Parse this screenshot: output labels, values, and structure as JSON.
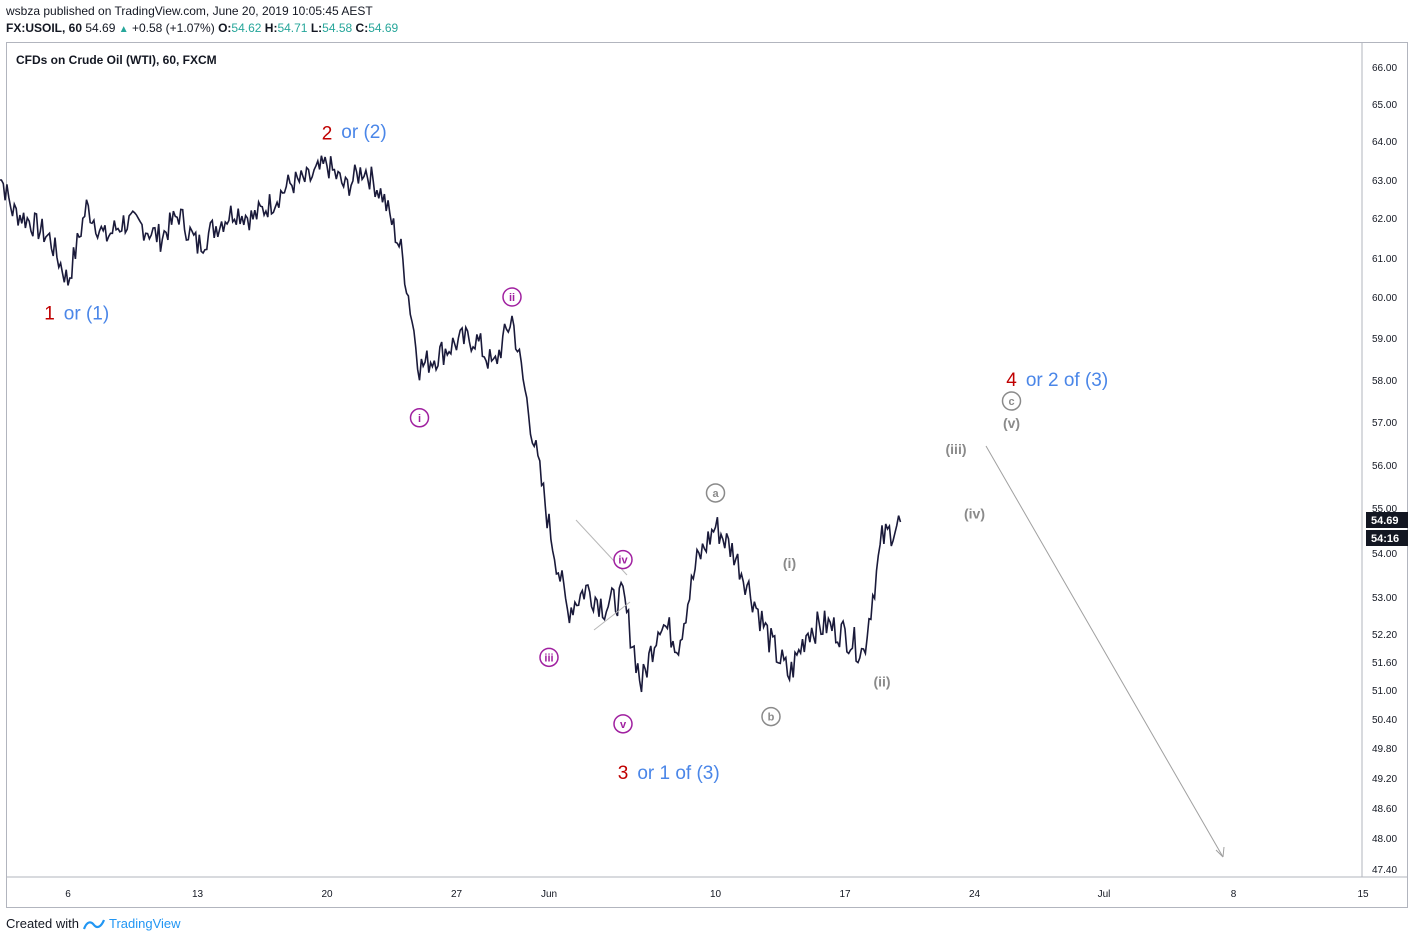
{
  "header": {
    "publisher": "wsbza published on TradingView.com, June 20, 2019 10:05:45 AEST",
    "symbol": "FX:USOIL, 60",
    "last": "54.69",
    "change": "+0.58 (+1.07%)",
    "open_label": "O:",
    "open": "54.62",
    "high_label": "H:",
    "high": "54.71",
    "low_label": "L:",
    "low": "54.58",
    "close_label": "C:",
    "close": "54.69"
  },
  "chart_title": "CFDs on Crude Oil (WTI), 60, FXCM",
  "footer": {
    "created_with": "Created with",
    "brand": "TradingView"
  },
  "colors": {
    "candles": "#1a1a3a",
    "red_label": "#c00000",
    "blue_label": "#4a86e8",
    "purple_label": "#a020a0",
    "gray_label": "#8a8a8a",
    "price_tag": "#131722"
  },
  "chart_data": {
    "type": "line",
    "title": "CFDs on Crude Oil (WTI), 60, FXCM",
    "x_ticks": [
      "6",
      "13",
      "20",
      "27",
      "Jun",
      "10",
      "17",
      "24",
      "Jul",
      "8",
      "15"
    ],
    "y_ticks": [
      "66.00",
      "65.00",
      "64.00",
      "63.00",
      "62.00",
      "61.00",
      "60.00",
      "59.00",
      "58.00",
      "57.00",
      "56.00",
      "55.00",
      "54.00",
      "53.00",
      "52.20",
      "51.60",
      "51.00",
      "50.40",
      "49.80",
      "49.20",
      "48.60",
      "48.00",
      "47.40"
    ],
    "price_tags": [
      "54.69",
      "54:16"
    ],
    "series": [
      {
        "x": [
          "May 2",
          "May 3",
          "May 4",
          "May 5",
          "May 6",
          "May 7",
          "May 8",
          "May 9",
          "May 10",
          "May 11",
          "May 12",
          "May 13",
          "May 14",
          "May 15",
          "May 16",
          "May 17",
          "May 18",
          "May 19",
          "May 20",
          "May 21",
          "May 22",
          "May 23",
          "May 24",
          "May 25",
          "May 26",
          "May 27",
          "May 28",
          "May 29",
          "May 30",
          "May 31",
          "Jun 1",
          "Jun 2",
          "Jun 3",
          "Jun 4",
          "Jun 5",
          "Jun 6",
          "Jun 7",
          "Jun 8",
          "Jun 9",
          "Jun 10",
          "Jun 11",
          "Jun 12",
          "Jun 13",
          "Jun 14",
          "Jun 15",
          "Jun 16",
          "Jun 17",
          "Jun 18",
          "Jun 19",
          "Jun 20"
        ],
        "y": [
          63.6,
          62.2,
          61.9,
          61.5,
          60.4,
          62.3,
          61.5,
          61.9,
          61.8,
          61.5,
          62.1,
          61.3,
          61.8,
          62.2,
          62.0,
          62.4,
          62.9,
          63.0,
          63.4,
          62.8,
          63.3,
          62.6,
          61.2,
          58.3,
          58.6,
          58.9,
          59.0,
          58.3,
          59.5,
          57.0,
          54.6,
          52.7,
          53.2,
          52.8,
          53.0,
          51.1,
          52.5,
          52.0,
          53.8,
          54.6,
          54.0,
          53.0,
          52.0,
          51.3,
          52.3,
          52.4,
          52.2,
          51.8,
          54.3,
          54.69
        ]
      }
    ],
    "annotations": [
      {
        "text": "1",
        "x": "May 5",
        "y": 59.6,
        "color": "red"
      },
      {
        "text": "or (1)",
        "x": "May 7",
        "y": 59.6,
        "color": "blue"
      },
      {
        "text": "2",
        "x": "May 20",
        "y": 64.2,
        "color": "red"
      },
      {
        "text": "or (2)",
        "x": "May 22",
        "y": 64.25,
        "color": "blue"
      },
      {
        "text": "i",
        "x": "May 25",
        "y": 57.1,
        "color": "purple",
        "circle": true
      },
      {
        "text": "ii",
        "x": "May 30",
        "y": 60.0,
        "color": "purple",
        "circle": true
      },
      {
        "text": "iii",
        "x": "Jun 1",
        "y": 51.7,
        "color": "purple",
        "circle": true
      },
      {
        "text": "iv",
        "x": "Jun 5",
        "y": 53.85,
        "color": "purple",
        "circle": true
      },
      {
        "text": "v",
        "x": "Jun 5",
        "y": 50.3,
        "color": "purple",
        "circle": true
      },
      {
        "text": "3",
        "x": "Jun 5",
        "y": 49.3,
        "color": "red"
      },
      {
        "text": "or 1 of (3)",
        "x": "Jun 8",
        "y": 49.3,
        "color": "blue"
      },
      {
        "text": "a",
        "x": "Jun 10",
        "y": 55.35,
        "color": "gray",
        "circle": true
      },
      {
        "text": "b",
        "x": "Jun 13",
        "y": 50.45,
        "color": "gray",
        "circle": true
      },
      {
        "text": "(i)",
        "x": "Jun 14",
        "y": 53.8,
        "color": "gray"
      },
      {
        "text": "(ii)",
        "x": "Jun 19",
        "y": 51.2,
        "color": "gray"
      },
      {
        "text": "(iii)",
        "x": "Jun 23",
        "y": 56.4,
        "color": "gray"
      },
      {
        "text": "(iv)",
        "x": "Jun 24",
        "y": 54.9,
        "color": "gray"
      },
      {
        "text": "(v)",
        "x": "Jun 26",
        "y": 57.0,
        "color": "gray"
      },
      {
        "text": "c",
        "x": "Jun 26",
        "y": 57.5,
        "color": "gray",
        "circle": true
      },
      {
        "text": "4",
        "x": "Jun 26",
        "y": 58.0,
        "color": "red"
      },
      {
        "text": "or 2 of (3)",
        "x": "Jun 29",
        "y": 58.0,
        "color": "blue"
      }
    ]
  }
}
